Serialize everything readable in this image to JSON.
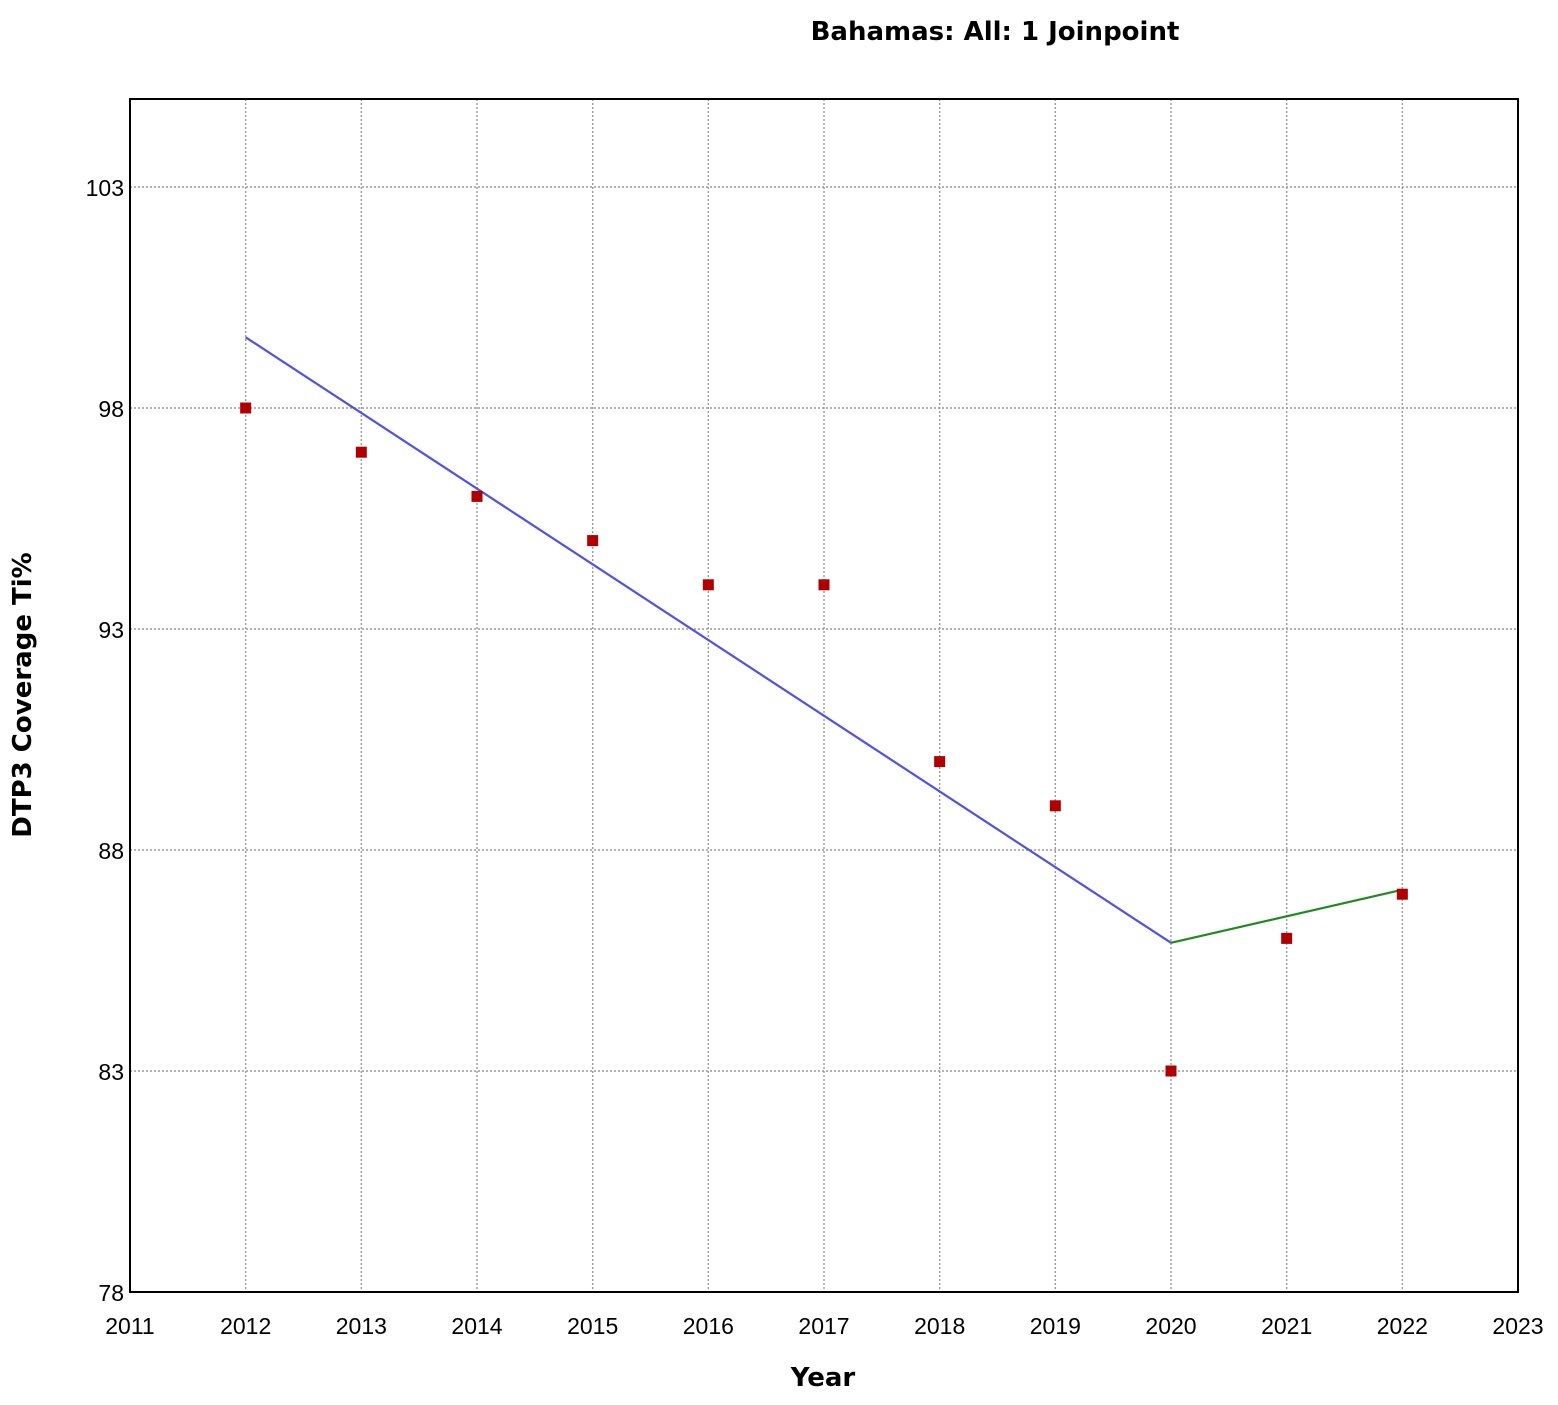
{
  "chart_data": {
    "type": "scatter",
    "title": "Bahamas: All: 1 Joinpoint",
    "xlabel": "Year",
    "ylabel": "DTP3 Coverage Ti%",
    "xlim": [
      2011,
      2023
    ],
    "ylim": [
      78,
      106
    ],
    "x_ticks": [
      2011,
      2012,
      2013,
      2014,
      2015,
      2016,
      2017,
      2018,
      2019,
      2020,
      2021,
      2022,
      2023
    ],
    "y_ticks": [
      78,
      83,
      88,
      93,
      98,
      103
    ],
    "grid": true,
    "observed": {
      "color": "#b00000",
      "x": [
        2012,
        2013,
        2014,
        2015,
        2016,
        2017,
        2018,
        2019,
        2020,
        2021,
        2022
      ],
      "y": [
        98,
        97,
        96,
        95,
        94,
        94,
        90,
        89,
        83,
        86,
        87
      ]
    },
    "segments": [
      {
        "color": "#5050ee",
        "x": [
          2012,
          2020
        ],
        "y": [
          99.6,
          85.9
        ]
      },
      {
        "color": "#1e8c1e",
        "x": [
          2020,
          2022
        ],
        "y": [
          85.9,
          87.1
        ]
      }
    ]
  }
}
